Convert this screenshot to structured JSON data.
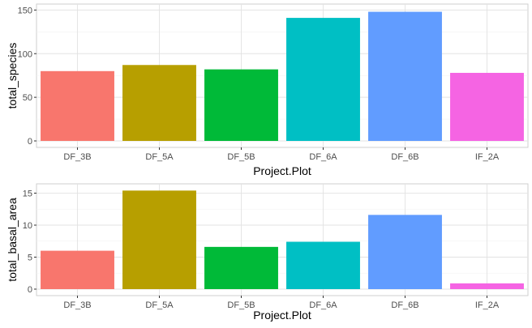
{
  "chart_data": [
    {
      "type": "bar",
      "categories": [
        "DF_3B",
        "DF_5A",
        "DF_5B",
        "DF_6A",
        "DF_6B",
        "IF_2A"
      ],
      "values": [
        80,
        87,
        82,
        141,
        148,
        78
      ],
      "colors": [
        "#F8766D",
        "#B79F00",
        "#00BA38",
        "#00BFC4",
        "#619CFF",
        "#F564E3"
      ],
      "xlabel": "Project.Plot",
      "ylabel": "total_species",
      "ylim": [
        0,
        155
      ],
      "yticks": [
        0,
        50,
        100,
        150
      ],
      "grid": true
    },
    {
      "type": "bar",
      "categories": [
        "DF_3B",
        "DF_5A",
        "DF_5B",
        "DF_6A",
        "DF_6B",
        "IF_2A"
      ],
      "values": [
        6.0,
        15.4,
        6.6,
        7.4,
        11.6,
        0.9
      ],
      "colors": [
        "#F8766D",
        "#B79F00",
        "#00BA38",
        "#00BFC4",
        "#619CFF",
        "#F564E3"
      ],
      "xlabel": "Project.Plot",
      "ylabel": "total_basal_area",
      "ylim": [
        0,
        16.2
      ],
      "yticks": [
        0,
        5,
        10,
        15
      ],
      "grid": true
    }
  ]
}
